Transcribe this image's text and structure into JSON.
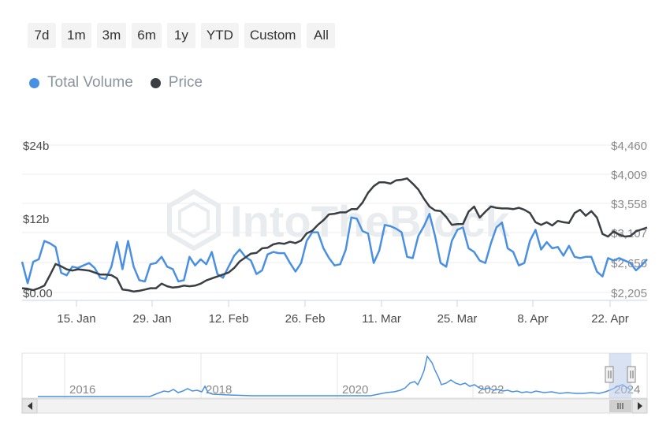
{
  "range_buttons": [
    "7d",
    "1m",
    "3m",
    "6m",
    "1y",
    "YTD",
    "Custom",
    "All"
  ],
  "legend": [
    {
      "label": "Total Volume",
      "color": "#4a90e2"
    },
    {
      "label": "Price",
      "color": "#3a3f44"
    }
  ],
  "watermark": "IntoTheBlock",
  "chart_data": {
    "type": "line",
    "x_labels": [
      "15. Jan",
      "29. Jan",
      "12. Feb",
      "26. Feb",
      "11. Mar",
      "25. Mar",
      "8. Apr",
      "22. Apr"
    ],
    "y_left_ticks": [
      "$0.00",
      "$12b",
      "$24b"
    ],
    "y_left_range": [
      0,
      24
    ],
    "y_right_ticks": [
      "$2,205",
      "$2,656",
      "$3,107",
      "$3,558",
      "$4,009",
      "$4,460"
    ],
    "y_right_range": [
      2205,
      4460
    ],
    "series": [
      {
        "name": "Total Volume",
        "axis": "left",
        "color": "#4a90e2",
        "values": [
          5.0,
          1.5,
          5.0,
          5.4,
          8.4,
          8.0,
          7.4,
          3.2,
          2.8,
          4.2,
          4.0,
          4.4,
          4.8,
          4.0,
          2.4,
          2.2,
          4.2,
          8.2,
          3.8,
          8.4,
          4.2,
          2.0,
          1.8,
          4.6,
          4.8,
          5.8,
          4.2,
          3.8,
          1.8,
          2.0,
          5.8,
          4.4,
          5.4,
          4.6,
          6.6,
          3.0,
          2.4,
          4.2,
          6.0,
          7.0,
          5.8,
          5.2,
          3.0,
          3.6,
          6.2,
          6.6,
          6.4,
          6.4,
          4.8,
          3.4,
          4.8,
          8.4,
          9.8,
          9.8,
          7.2,
          5.6,
          4.4,
          4.6,
          7.0,
          12.2,
          12.0,
          10.0,
          9.6,
          4.8,
          6.8,
          11.0,
          10.8,
          10.4,
          9.8,
          5.8,
          5.6,
          9.2,
          10.8,
          12.8,
          9.2,
          4.8,
          4.2,
          8.4,
          10.2,
          10.6,
          7.2,
          6.6,
          5.2,
          4.8,
          8.0,
          10.6,
          11.4,
          7.2,
          6.6,
          4.4,
          4.8,
          8.4,
          10.2,
          7.0,
          8.2,
          7.2,
          7.4,
          6.0,
          7.6,
          5.8,
          5.6,
          5.8,
          5.8,
          3.4,
          2.6,
          5.6,
          5.2,
          5.6,
          5.2,
          4.8,
          3.6,
          4.4,
          5.4
        ]
      },
      {
        "name": "Price",
        "axis": "right",
        "color": "#3a3f44",
        "values": [
          2270,
          2262,
          2240,
          2270,
          2310,
          2470,
          2640,
          2605,
          2560,
          2540,
          2560,
          2550,
          2540,
          2510,
          2480,
          2480,
          2470,
          2420,
          2250,
          2240,
          2220,
          2230,
          2250,
          2270,
          2270,
          2340,
          2300,
          2280,
          2290,
          2310,
          2300,
          2310,
          2340,
          2390,
          2420,
          2450,
          2480,
          2510,
          2580,
          2680,
          2740,
          2800,
          2810,
          2880,
          2890,
          2940,
          2960,
          2950,
          2980,
          2960,
          3000,
          3110,
          3150,
          3240,
          3310,
          3400,
          3410,
          3430,
          3430,
          3480,
          3480,
          3580,
          3730,
          3830,
          3890,
          3890,
          3870,
          3920,
          3930,
          3950,
          3870,
          3780,
          3640,
          3520,
          3460,
          3450,
          3360,
          3240,
          3250,
          3250,
          3440,
          3520,
          3350,
          3440,
          3520,
          3500,
          3490,
          3490,
          3480,
          3500,
          3470,
          3420,
          3280,
          3240,
          3280,
          3230,
          3300,
          3280,
          3270,
          3420,
          3470,
          3380,
          3450,
          3350,
          3100,
          3060,
          3140,
          3090,
          3060,
          3070,
          3140,
          3170,
          3200
        ]
      }
    ],
    "navigator": {
      "year_labels": [
        "2016",
        "2018",
        "2020",
        "2022",
        "2024"
      ]
    }
  }
}
